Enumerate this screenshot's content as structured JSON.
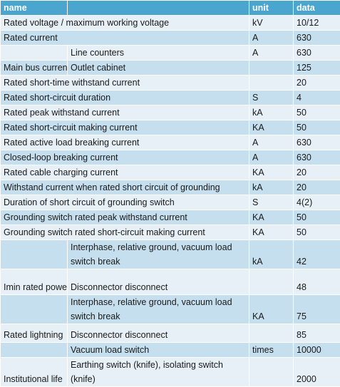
{
  "table": {
    "headers": {
      "name": "name",
      "unit": "unit",
      "data": "data"
    },
    "rows": [
      {
        "a": "Rated voltage / maximum working voltage",
        "b": "",
        "unit": "kV",
        "data": "10/12"
      },
      {
        "a": "Rated current",
        "b": "",
        "unit": "A",
        "data": "630"
      },
      {
        "a": "",
        "b": "Line counters",
        "unit": "A",
        "data": "630"
      },
      {
        "a": "Main bus current",
        "b": "Outlet cabinet",
        "unit": "",
        "data": "125"
      },
      {
        "a": "Rated short-time withstand current",
        "b": "",
        "unit": "",
        "data": "20"
      },
      {
        "a": "Rated short-circuit duration",
        "b": "",
        "unit": "S",
        "data": "4"
      },
      {
        "a": "Rated peak withstand current",
        "b": "",
        "unit": "kA",
        "data": "50"
      },
      {
        "a": "Rated short-circuit making current",
        "b": "",
        "unit": "KA",
        "data": "50"
      },
      {
        "a": "Rated active load breaking current",
        "b": "",
        "unit": "A",
        "data": "630"
      },
      {
        "a": "Closed-loop breaking current",
        "b": "",
        "unit": "A",
        "data": "630"
      },
      {
        "a": "Rated cable charging current",
        "b": "",
        "unit": "KA",
        "data": "20"
      },
      {
        "a": "Withstand current when rated short circuit of grounding",
        "b": "",
        "unit": "kA",
        "data": "20"
      },
      {
        "a": "Duration of short circuit of grounding switch",
        "b": "",
        "unit": "S",
        "data": "4(2)"
      },
      {
        "a": "Grounding switch rated peak withstand current",
        "b": "",
        "unit": "KA",
        "data": "50"
      },
      {
        "a": "Grounding switch rated short-circuit making current",
        "b": "",
        "unit": "KA",
        "data": "50"
      },
      {
        "a": "",
        "b": "Interphase, relative ground, vacuum load switch break",
        "unit": "kA",
        "data": "42"
      },
      {
        "a": "Imin rated power",
        "b": "Disconnector disconnect",
        "unit": "",
        "data": "48"
      },
      {
        "a": "",
        "b": "Interphase, relative ground, vacuum load switch break",
        "unit": "KA",
        "data": "75"
      },
      {
        "a": "Rated lightning",
        "b": "Disconnector disconnect",
        "unit": "",
        "data": "85"
      },
      {
        "a": "",
        "b": "Vacuum load switch",
        "unit": "times",
        "data": "10000"
      },
      {
        "a": "Institutional life",
        "b": "Earthing switch (knife), isolating switch (knife)",
        "unit": "",
        "data": "2000"
      }
    ]
  }
}
